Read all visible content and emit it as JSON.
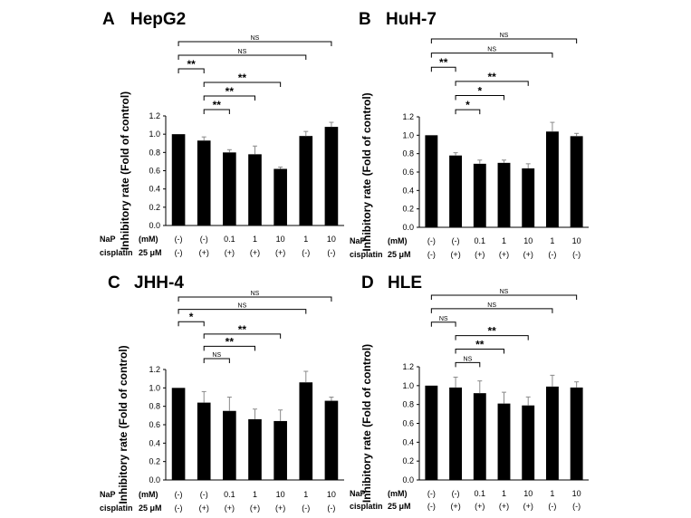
{
  "chart_data": [
    {
      "type": "bar",
      "panel": "A",
      "title": "HepG2",
      "ylabel": "Inhibitory rate (Fold  of control)",
      "ylim": [
        0,
        1.2
      ],
      "yticks": [
        "0.0",
        "0.2",
        "0.4",
        "0.6",
        "0.8",
        "1.0",
        "1.2"
      ],
      "values": [
        1.0,
        0.93,
        0.8,
        0.78,
        0.62,
        0.98,
        1.08
      ],
      "errors": [
        0.0,
        0.04,
        0.03,
        0.09,
        0.02,
        0.05,
        0.05
      ],
      "conditions": [
        {
          "name": "NaP",
          "unit": "(mM)",
          "cells": [
            "(-)",
            "(-)",
            "0.1",
            "1",
            "10",
            "1",
            "10"
          ]
        },
        {
          "name": "cisplatin",
          "unit": "25 μM",
          "cells": [
            "(-)",
            "(+)",
            "(+)",
            "(+)",
            "(+)",
            "(-)",
            "(-)"
          ]
        }
      ],
      "significance": [
        {
          "from": 0,
          "to": 6,
          "label": "NS"
        },
        {
          "from": 0,
          "to": 5,
          "label": "NS"
        },
        {
          "from": 0,
          "to": 1,
          "label": "**"
        },
        {
          "from": 1,
          "to": 4,
          "label": "**"
        },
        {
          "from": 1,
          "to": 3,
          "label": "**"
        },
        {
          "from": 1,
          "to": 2,
          "label": "**"
        }
      ]
    },
    {
      "type": "bar",
      "panel": "B",
      "title": "HuH-7",
      "ylabel": "Inhibitory rate (Fold  of control)",
      "ylim": [
        0,
        1.2
      ],
      "yticks": [
        "0.0",
        "0.2",
        "0.4",
        "0.6",
        "0.8",
        "1.0",
        "1.2"
      ],
      "values": [
        1.0,
        0.78,
        0.69,
        0.7,
        0.64,
        1.04,
        0.99
      ],
      "errors": [
        0.0,
        0.03,
        0.04,
        0.03,
        0.05,
        0.1,
        0.03
      ],
      "conditions": [
        {
          "name": "NaP",
          "unit": "(mM)",
          "cells": [
            "(-)",
            "(-)",
            "0.1",
            "1",
            "10",
            "1",
            "10"
          ]
        },
        {
          "name": "cisplatin",
          "unit": "25 μM",
          "cells": [
            "(-)",
            "(+)",
            "(+)",
            "(+)",
            "(+)",
            "(-)",
            "(-)"
          ]
        }
      ],
      "significance": [
        {
          "from": 0,
          "to": 6,
          "label": "NS"
        },
        {
          "from": 0,
          "to": 5,
          "label": "NS"
        },
        {
          "from": 0,
          "to": 1,
          "label": "**"
        },
        {
          "from": 1,
          "to": 4,
          "label": "**"
        },
        {
          "from": 1,
          "to": 3,
          "label": "*"
        },
        {
          "from": 1,
          "to": 2,
          "label": "*"
        }
      ]
    },
    {
      "type": "bar",
      "panel": "C",
      "title": "JHH-4",
      "ylabel": "Inhibitory rate (Fold  of control)",
      "ylim": [
        0,
        1.2
      ],
      "yticks": [
        "0.0",
        "0.2",
        "0.4",
        "0.6",
        "0.8",
        "1.0",
        "1.2"
      ],
      "values": [
        1.0,
        0.84,
        0.75,
        0.66,
        0.64,
        1.06,
        0.86
      ],
      "errors": [
        0.0,
        0.12,
        0.15,
        0.11,
        0.12,
        0.12,
        0.04
      ],
      "conditions": [
        {
          "name": "NaP",
          "unit": "(mM)",
          "cells": [
            "(-)",
            "(-)",
            "0.1",
            "1",
            "10",
            "1",
            "10"
          ]
        },
        {
          "name": "cisplatin",
          "unit": "25 μM",
          "cells": [
            "(-)",
            "(+)",
            "(+)",
            "(+)",
            "(+)",
            "(-)",
            "(-)"
          ]
        }
      ],
      "significance": [
        {
          "from": 0,
          "to": 6,
          "label": "NS"
        },
        {
          "from": 0,
          "to": 5,
          "label": "NS"
        },
        {
          "from": 0,
          "to": 1,
          "label": "*"
        },
        {
          "from": 1,
          "to": 4,
          "label": "**"
        },
        {
          "from": 1,
          "to": 3,
          "label": "**"
        },
        {
          "from": 1,
          "to": 2,
          "label": "NS"
        }
      ]
    },
    {
      "type": "bar",
      "panel": "D",
      "title": "HLE",
      "ylabel": "Inhibitory rate (Fold  of control)",
      "ylim": [
        0,
        1.2
      ],
      "yticks": [
        "0.0",
        "0.2",
        "0.4",
        "0.6",
        "0.8",
        "1.0",
        "1.2"
      ],
      "values": [
        1.0,
        0.98,
        0.92,
        0.81,
        0.79,
        0.99,
        0.98
      ],
      "errors": [
        0.0,
        0.11,
        0.13,
        0.12,
        0.09,
        0.12,
        0.06
      ],
      "conditions": [
        {
          "name": "NaP",
          "unit": "(mM)",
          "cells": [
            "(-)",
            "(-)",
            "0.1",
            "1",
            "10",
            "1",
            "10"
          ]
        },
        {
          "name": "cisplatin",
          "unit": "25 μM",
          "cells": [
            "(-)",
            "(+)",
            "(+)",
            "(+)",
            "(+)",
            "(-)",
            "(-)"
          ]
        }
      ],
      "significance": [
        {
          "from": 0,
          "to": 6,
          "label": "NS"
        },
        {
          "from": 0,
          "to": 5,
          "label": "NS"
        },
        {
          "from": 0,
          "to": 1,
          "label": "NS"
        },
        {
          "from": 1,
          "to": 4,
          "label": "**"
        },
        {
          "from": 1,
          "to": 3,
          "label": "**"
        },
        {
          "from": 1,
          "to": 2,
          "label": "NS"
        }
      ]
    }
  ]
}
